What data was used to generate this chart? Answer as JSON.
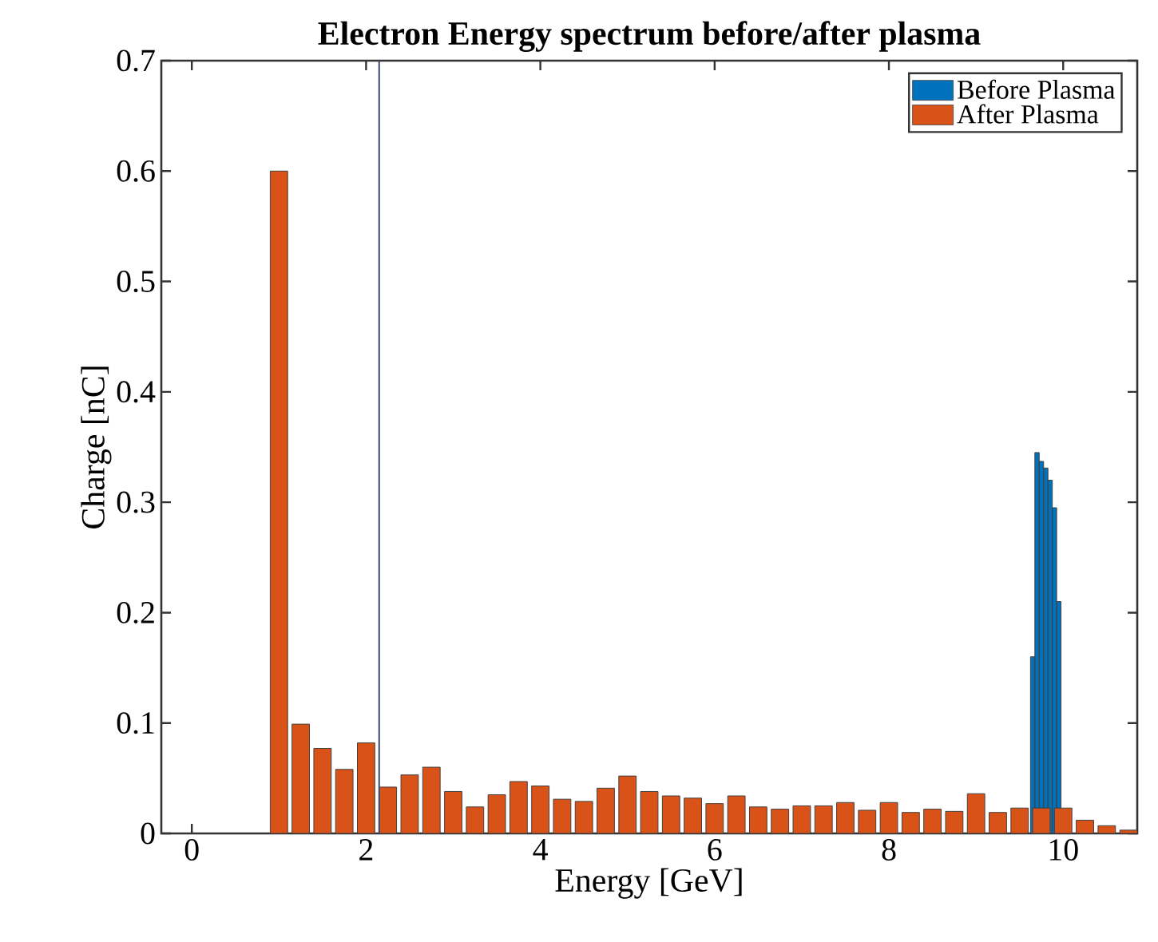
{
  "chart_data": {
    "type": "bar",
    "title": "Electron Energy spectrum before/after plasma",
    "xlabel": "Energy [GeV]",
    "ylabel": "Charge [nC]",
    "xlim": [
      -0.35,
      10.85
    ],
    "ylim": [
      0,
      0.7
    ],
    "xticks": [
      0,
      2,
      4,
      6,
      8,
      10
    ],
    "yticks": [
      0,
      0.1,
      0.2,
      0.3,
      0.4,
      0.5,
      0.6,
      0.7
    ],
    "legend": "top right",
    "series": [
      {
        "name": "Before Plasma",
        "color": "#0072bd",
        "x": [
          9.65,
          9.7,
          9.75,
          9.8,
          9.85,
          9.9,
          9.95
        ],
        "values": [
          0.16,
          0.345,
          0.337,
          0.331,
          0.32,
          0.295,
          0.21
        ]
      },
      {
        "name": "After Plasma",
        "color": "#d95319",
        "x": [
          1.0,
          1.25,
          1.5,
          1.75,
          2.0,
          2.25,
          2.5,
          2.75,
          3.0,
          3.25,
          3.5,
          3.75,
          4.0,
          4.25,
          4.5,
          4.75,
          5.0,
          5.25,
          5.5,
          5.75,
          6.0,
          6.25,
          6.5,
          6.75,
          7.0,
          7.25,
          7.5,
          7.75,
          8.0,
          8.25,
          8.5,
          8.75,
          9.0,
          9.25,
          9.5,
          9.75,
          10.0,
          10.25,
          10.5,
          10.75
        ],
        "values": [
          0.6,
          0.099,
          0.077,
          0.058,
          0.082,
          0.042,
          0.053,
          0.06,
          0.038,
          0.024,
          0.035,
          0.047,
          0.043,
          0.031,
          0.029,
          0.041,
          0.052,
          0.038,
          0.034,
          0.032,
          0.027,
          0.034,
          0.024,
          0.022,
          0.025,
          0.025,
          0.028,
          0.021,
          0.028,
          0.019,
          0.022,
          0.02,
          0.036,
          0.019,
          0.023,
          0.023,
          0.023,
          0.012,
          0.007,
          0.003
        ]
      }
    ],
    "ref_lines": [
      {
        "axis": "x",
        "value": 2.15,
        "color": "#3c4a6e"
      }
    ]
  }
}
